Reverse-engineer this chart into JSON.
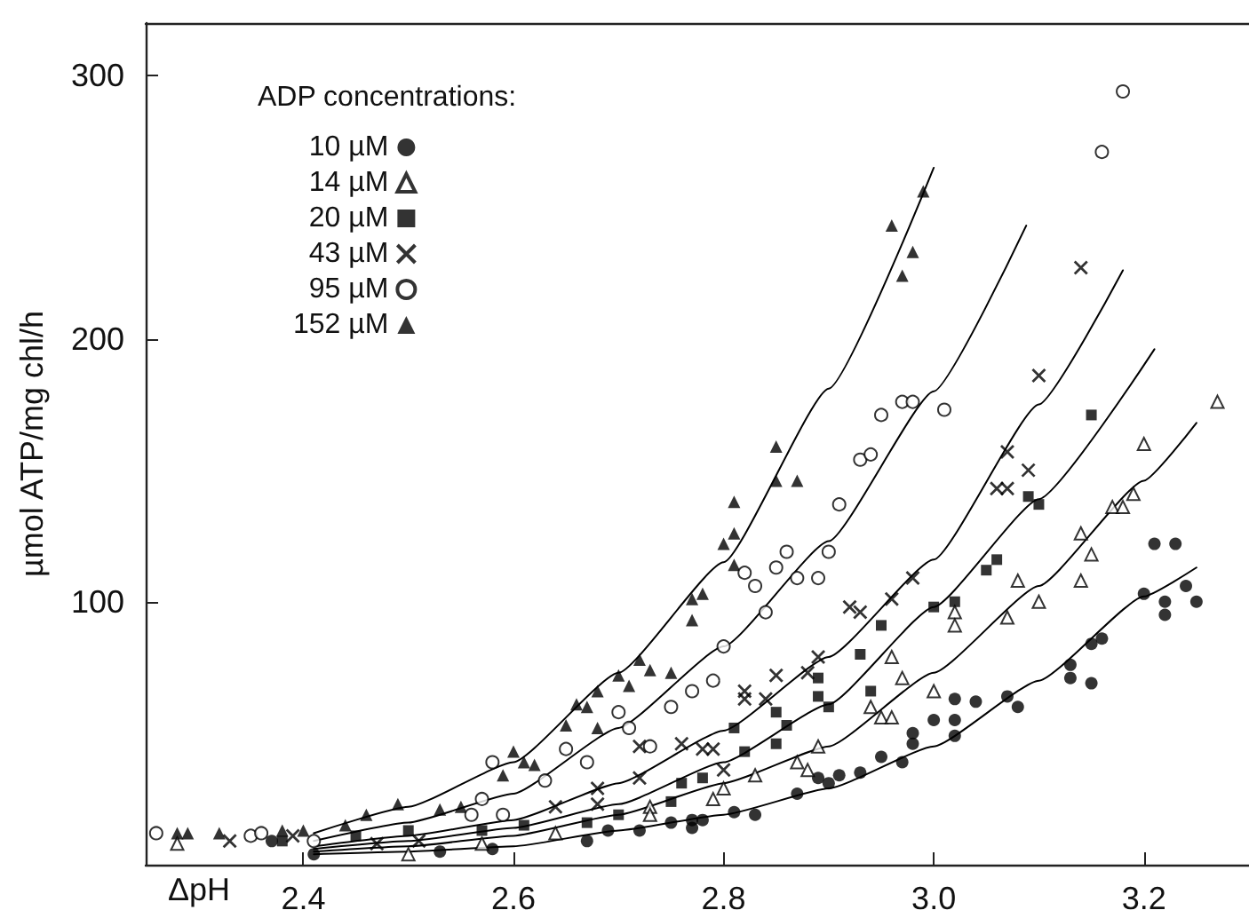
{
  "chart_data": {
    "type": "scatter",
    "xlabel": "ΔpH",
    "ylabel": "µmol ATP/mg chl/h",
    "legend_title": "ADP concentrations:",
    "legend": "top left",
    "line_style": "solid",
    "xlim": [
      2.25,
      3.3
    ],
    "xticks": [
      2.4,
      2.6,
      2.8,
      {
        "value": 3,
        "label": "3.0"
      },
      3.2
    ],
    "ylim": [
      0,
      320
    ],
    "yticks": [
      100,
      200,
      300
    ],
    "grid": false,
    "series": [
      {
        "name": "10 µM",
        "color": "#000000",
        "marker": "circle",
        "x": [
          2.37,
          2.41,
          2.53,
          2.58,
          2.67,
          2.69,
          2.72,
          2.75,
          2.77,
          2.77,
          2.78,
          2.81,
          2.83,
          2.87,
          2.89,
          2.9,
          2.91,
          2.93,
          2.95,
          2.97,
          2.98,
          2.98,
          3.0,
          3.02,
          3.02,
          3.02,
          3.04,
          3.07,
          3.08,
          3.13,
          3.13,
          3.15,
          3.15,
          3.16,
          3.2,
          3.21,
          3.23,
          3.22,
          3.22,
          3.24,
          3.25
        ],
        "values": [
          9,
          4,
          5,
          6,
          9,
          13,
          13,
          16,
          14,
          17,
          17,
          20,
          19,
          27,
          33,
          31,
          34,
          35,
          41,
          39,
          50,
          46,
          55,
          63,
          55,
          49,
          62,
          64,
          60,
          76,
          71,
          69,
          84,
          86,
          103,
          122,
          122,
          100,
          95,
          106,
          100
        ]
      },
      {
        "name": "14 µM",
        "color": "#000000",
        "marker": "triangle-open",
        "x": [
          2.28,
          2.5,
          2.57,
          2.64,
          2.73,
          2.73,
          2.79,
          2.8,
          2.83,
          2.89,
          2.87,
          2.88,
          2.94,
          2.95,
          2.96,
          2.96,
          2.97,
          3.0,
          3.02,
          3.02,
          3.07,
          3.08,
          3.1,
          3.14,
          3.14,
          3.15,
          3.17,
          3.18,
          3.19,
          3.2,
          3.27
        ],
        "values": [
          8,
          4,
          8,
          12,
          22,
          19,
          25,
          29,
          34,
          45,
          39,
          36,
          60,
          56,
          56,
          79,
          71,
          66,
          96,
          91,
          94,
          108,
          100,
          108,
          126,
          118,
          136,
          136,
          141,
          160,
          176
        ]
      },
      {
        "name": "20 µM",
        "color": "#000000",
        "marker": "square",
        "x": [
          2.38,
          2.45,
          2.5,
          2.57,
          2.61,
          2.67,
          2.7,
          2.75,
          2.76,
          2.78,
          2.81,
          2.82,
          2.85,
          2.85,
          2.86,
          2.89,
          2.89,
          2.9,
          2.93,
          2.94,
          2.95,
          3.0,
          3.02,
          3.05,
          3.06,
          3.09,
          3.1,
          3.15
        ],
        "values": [
          9,
          11,
          13,
          13,
          15,
          16,
          19,
          24,
          31,
          33,
          52,
          43,
          58,
          46,
          53,
          64,
          71,
          60,
          80,
          66,
          91,
          98,
          100,
          112,
          116,
          140,
          137,
          171
        ]
      },
      {
        "name": "43 µM",
        "color": "#000000",
        "marker": "cross",
        "x": [
          2.33,
          2.39,
          2.47,
          2.51,
          2.64,
          2.68,
          2.68,
          2.72,
          2.72,
          2.76,
          2.78,
          2.79,
          2.8,
          2.82,
          2.82,
          2.84,
          2.85,
          2.88,
          2.89,
          2.92,
          2.93,
          2.96,
          2.98,
          3.06,
          3.07,
          3.07,
          3.09,
          3.1,
          3.14
        ],
        "values": [
          9,
          11,
          8,
          9,
          22,
          29,
          23,
          45,
          33,
          46,
          44,
          44,
          36,
          66,
          63,
          63,
          72,
          73,
          79,
          98,
          96,
          101,
          109,
          143,
          143,
          157,
          150,
          186,
          227
        ]
      },
      {
        "name": "95 µM",
        "color": "#000000",
        "marker": "circle-open",
        "x": [
          2.26,
          2.35,
          2.36,
          2.41,
          2.56,
          2.57,
          2.58,
          2.59,
          2.63,
          2.65,
          2.67,
          2.7,
          2.71,
          2.73,
          2.75,
          2.77,
          2.79,
          2.8,
          2.82,
          2.83,
          2.84,
          2.85,
          2.86,
          2.87,
          2.89,
          2.9,
          2.91,
          2.93,
          2.94,
          2.95,
          2.97,
          2.98,
          3.01,
          3.16,
          3.18
        ],
        "values": [
          12,
          11,
          12,
          9,
          19,
          25,
          39,
          19,
          32,
          44,
          39,
          58,
          52,
          45,
          60,
          66,
          70,
          83,
          111,
          106,
          96,
          113,
          119,
          109,
          109,
          119,
          137,
          154,
          156,
          171,
          176,
          176,
          173,
          271,
          294
        ]
      },
      {
        "name": "152 µM",
        "color": "#000000",
        "marker": "triangle",
        "x": [
          2.28,
          2.29,
          2.32,
          2.38,
          2.4,
          2.44,
          2.46,
          2.49,
          2.53,
          2.55,
          2.59,
          2.6,
          2.61,
          2.62,
          2.65,
          2.66,
          2.67,
          2.68,
          2.68,
          2.7,
          2.71,
          2.72,
          2.73,
          2.75,
          2.77,
          2.77,
          2.78,
          2.8,
          2.81,
          2.81,
          2.81,
          2.85,
          2.85,
          2.87,
          2.96,
          2.97,
          2.98,
          2.99
        ],
        "values": [
          12,
          12,
          12,
          13,
          13,
          15,
          19,
          23,
          21,
          22,
          34,
          43,
          39,
          38,
          53,
          61,
          60,
          66,
          52,
          72,
          68,
          78,
          74,
          73,
          93,
          101,
          103,
          122,
          126,
          138,
          114,
          159,
          146,
          146,
          243,
          224,
          233,
          256
        ]
      },
      {
        "type": "line",
        "color": "#000000",
        "marker": "none",
        "x": [
          2.41,
          2.5,
          2.6,
          2.7,
          2.8,
          2.9,
          3.0,
          3.1,
          3.2,
          3.25
        ],
        "values": [
          4,
          5,
          7,
          13,
          19,
          29,
          45,
          70,
          102,
          113
        ]
      },
      {
        "type": "line",
        "color": "#000000",
        "marker": "none",
        "x": [
          2.41,
          2.5,
          2.6,
          2.7,
          2.8,
          2.9,
          3.0,
          3.1,
          3.2,
          3.25
        ],
        "values": [
          5,
          7,
          11,
          19,
          31,
          45,
          73,
          106,
          146,
          168
        ]
      },
      {
        "type": "line",
        "color": "#000000",
        "marker": "none",
        "x": [
          2.41,
          2.5,
          2.6,
          2.7,
          2.8,
          2.9,
          3.0,
          3.1,
          3.21
        ],
        "values": [
          6,
          9,
          14,
          23,
          39,
          61,
          98,
          139,
          196
        ]
      },
      {
        "type": "line",
        "color": "#000000",
        "marker": "none",
        "x": [
          2.41,
          2.5,
          2.6,
          2.7,
          2.8,
          2.9,
          3.0,
          3.1,
          3.18
        ],
        "values": [
          7,
          11,
          17,
          31,
          51,
          79,
          116,
          175,
          226
        ]
      },
      {
        "type": "line",
        "color": "#000000",
        "marker": "none",
        "x": [
          2.41,
          2.5,
          2.6,
          2.7,
          2.8,
          2.9,
          3.0,
          3.088
        ],
        "values": [
          9,
          16,
          27,
          52,
          83,
          123,
          180,
          243
        ]
      },
      {
        "type": "line",
        "color": "#000000",
        "marker": "none",
        "x": [
          2.41,
          2.5,
          2.6,
          2.7,
          2.8,
          2.9,
          3.0
        ],
        "values": [
          12,
          22,
          39,
          73,
          115,
          181,
          265
        ]
      }
    ]
  }
}
